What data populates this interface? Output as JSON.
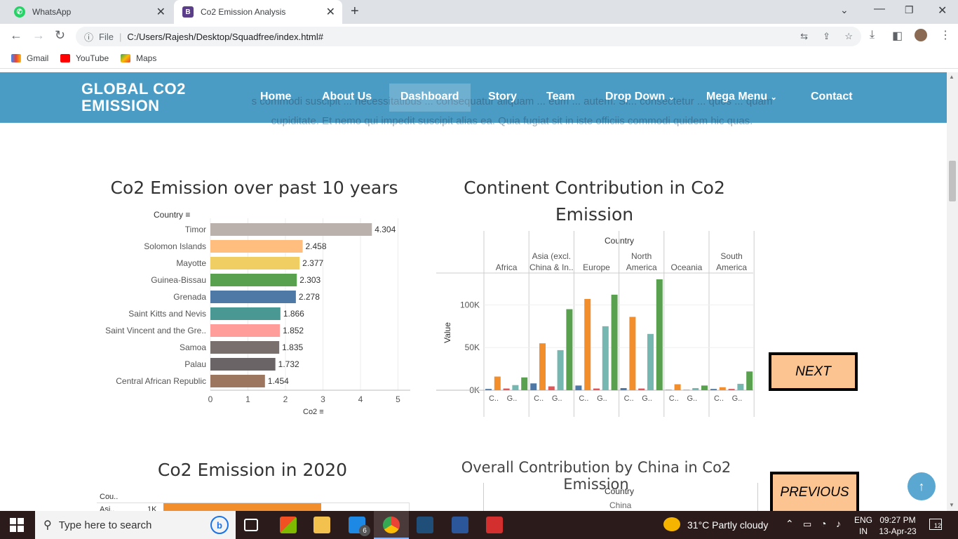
{
  "browser": {
    "tabs": [
      {
        "title": "WhatsApp"
      },
      {
        "title": "Co2 Emission Analysis"
      }
    ],
    "url_prefix": "File",
    "url": "C:/Users/Rajesh/Desktop/Squadfree/index.html#",
    "bookmarks": [
      {
        "label": "Gmail"
      },
      {
        "label": "YouTube"
      },
      {
        "label": "Maps"
      }
    ]
  },
  "nav": {
    "brand": "GLOBAL CO2 EMISSION",
    "links": [
      "Home",
      "About Us",
      "Dashboard",
      "Story",
      "Team",
      "Drop Down",
      "Mega Menu",
      "Contact"
    ],
    "bg_text_line1": "s commodi suscipit ... necessitatibus ... consequatur aliquam ... eum ... autem. Si... consectetur ... quos ... quam",
    "bg_text_line2": "cupiditate. Et nemo qui impedit suscipit alias ea. Quia fugiat sit in iste officiis commodi quidem hic quas."
  },
  "chart1": {
    "title": "Co2 Emission over past 10 years",
    "axis_header": "Country",
    "xlabel": "Co2",
    "ticks": [
      "0",
      "1",
      "2",
      "3",
      "4",
      "5"
    ]
  },
  "chart2": {
    "title_line1": "Continent Contribution in Co2",
    "title_line2": "Emission",
    "header": "Country",
    "ylabel": "Value",
    "yticks": [
      "100K",
      "50K",
      "0K"
    ],
    "sub_labels": [
      "C..",
      "G..",
      "C..",
      "G..",
      "C..",
      "G..",
      "C..",
      "G..",
      "C..",
      "G..",
      "C..",
      "G.."
    ]
  },
  "chart3": {
    "title": "Co2 Emission in 2020",
    "col_header": "Cou..",
    "row_label": "Asi..",
    "row_value": "1K"
  },
  "chart4": {
    "title": "Overall Contribution by China in Co2 Emission",
    "header": "Country",
    "sub": "China"
  },
  "buttons": {
    "next": "NEXT",
    "previous": "PREVIOUS"
  },
  "taskbar": {
    "search_placeholder": "Type here to search",
    "mail_badge": "6",
    "weather": "31°C  Partly cloudy",
    "lang1": "ENG",
    "lang2": "IN",
    "time": "09:27 PM",
    "date": "13-Apr-23",
    "notif": "12"
  },
  "colors": {
    "navbar": "#4b9cc4",
    "button": "#fbc490"
  },
  "chart_data": [
    {
      "type": "bar",
      "title": "Co2 Emission over past 10 years",
      "ylabel": "Country",
      "xlabel": "Co2",
      "xlim": [
        0,
        5
      ],
      "categories": [
        "Timor",
        "Solomon Islands",
        "Mayotte",
        "Guinea-Bissau",
        "Grenada",
        "Saint Kitts and Nevis",
        "Saint Vincent and the Gre..",
        "Samoa",
        "Palau",
        "Central African Republic"
      ],
      "values": [
        4.304,
        2.458,
        2.377,
        2.303,
        2.278,
        1.866,
        1.852,
        1.835,
        1.732,
        1.454
      ],
      "labels": [
        "4.304",
        "2.458",
        "2.377",
        "2.303",
        "2.278",
        "1.866",
        "1.852",
        "1.835",
        "1.732",
        "1.454"
      ],
      "colors": [
        "#bab0ac",
        "#ffbe7d",
        "#f1ce63",
        "#59a14f",
        "#4e79a7",
        "#499894",
        "#ff9d9a",
        "#79706e",
        "#6b6466",
        "#9d7660"
      ]
    },
    {
      "type": "bar",
      "title": "Continent Contribution in Co2 Emission",
      "ylabel": "Value",
      "ylim": [
        0,
        130000
      ],
      "categories": [
        "Africa",
        "Asia (excl. China & In..",
        "Europe",
        "North America",
        "Oceania",
        "South America"
      ],
      "series_colors": [
        "#4e79a7",
        "#f28e2b",
        "#e15759",
        "#76b7b2",
        "#59a14f"
      ],
      "values": [
        [
          1500,
          16000,
          2000,
          6000,
          15000
        ],
        [
          8000,
          55000,
          4500,
          47000,
          95000
        ],
        [
          5500,
          107000,
          2000,
          75000,
          112000
        ],
        [
          2500,
          86000,
          2000,
          66000,
          130000
        ],
        [
          500,
          7000,
          500,
          2500,
          5500
        ],
        [
          1500,
          3500,
          1500,
          7500,
          22000
        ]
      ]
    }
  ]
}
